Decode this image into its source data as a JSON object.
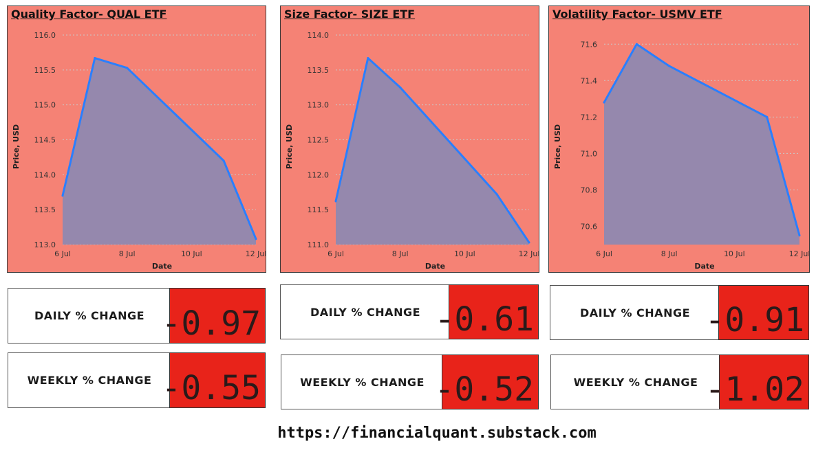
{
  "chart_data": [
    {
      "type": "area",
      "title": "Quality Factor- QUAL ETF",
      "xlabel": "Date",
      "ylabel": "Price, USD",
      "x": [
        "6 Jul",
        "7 Jul",
        "8 Jul",
        "11 Jul",
        "12 Jul"
      ],
      "values": [
        113.7,
        115.67,
        115.53,
        114.2,
        113.08
      ],
      "xticks": [
        "6 Jul",
        "8 Jul",
        "10 Jul",
        "12 Jul"
      ],
      "yticks": [
        "113.0",
        "113.5",
        "114.0",
        "114.5",
        "115.0",
        "115.5",
        "116.0"
      ],
      "ylim": [
        113.0,
        116.0
      ],
      "grid": true,
      "legend": "none",
      "line_color": "#2a7fff",
      "fill_color": "#9588ad"
    },
    {
      "type": "area",
      "title": "Size Factor- SIZE ETF",
      "xlabel": "Date",
      "ylabel": "Price, USD",
      "x": [
        "6 Jul",
        "7 Jul",
        "8 Jul",
        "11 Jul",
        "12 Jul"
      ],
      "values": [
        111.62,
        113.67,
        113.25,
        111.72,
        111.03
      ],
      "xticks": [
        "6 Jul",
        "8 Jul",
        "10 Jul",
        "12 Jul"
      ],
      "yticks": [
        "111.0",
        "111.5",
        "112.0",
        "112.5",
        "113.0",
        "113.5",
        "114.0"
      ],
      "ylim": [
        111.0,
        114.0
      ],
      "grid": true,
      "legend": "none",
      "line_color": "#2a7fff",
      "fill_color": "#9588ad"
    },
    {
      "type": "area",
      "title": "Volatility Factor- USMV ETF",
      "xlabel": "Date",
      "ylabel": "Price, USD",
      "x": [
        "6 Jul",
        "7 Jul",
        "8 Jul",
        "11 Jul",
        "12 Jul"
      ],
      "values": [
        71.28,
        71.6,
        71.48,
        71.2,
        70.55
      ],
      "xticks": [
        "6 Jul",
        "8 Jul",
        "10 Jul",
        "12 Jul"
      ],
      "yticks": [
        "70.6",
        "70.8",
        "71.0",
        "71.2",
        "71.4",
        "71.6"
      ],
      "ylim": [
        70.5,
        71.65
      ],
      "grid": true,
      "legend": "none",
      "line_color": "#2a7fff",
      "fill_color": "#9588ad"
    }
  ],
  "stats": [
    {
      "daily_label": "DAILY % CHANGE",
      "daily_value": "-0.97",
      "weekly_label": "WEEKLY % CHANGE",
      "weekly_value": "-0.55"
    },
    {
      "daily_label": "DAILY % CHANGE",
      "daily_value": "-0.61",
      "weekly_label": "WEEKLY % CHANGE",
      "weekly_value": "-0.52"
    },
    {
      "daily_label": "DAILY % CHANGE",
      "daily_value": "-0.91",
      "weekly_label": "WEEKLY % CHANGE",
      "weekly_value": "-1.02"
    }
  ],
  "footer": {
    "link_text": "https://financialquant.substack.com"
  }
}
